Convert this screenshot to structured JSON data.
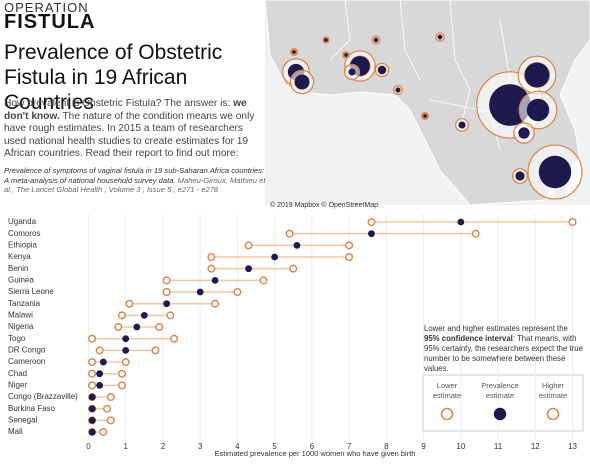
{
  "header": {
    "kicker": "OPERATION",
    "brand": "FISTULA",
    "title": "Prevalence of Obstetric Fistula in 19 African Countries",
    "intro": [
      "How prevalent is Obstetric Fistula? The answer is: ",
      "we don't know.",
      " The nature of the condition means we only have rough estimates. In 2015 a team of researchers used national health studies to create estimates for 19 African countries. Read their report to find out more:"
    ],
    "citation": [
      "Prevalence of symptoms of vaginal fistula in 19 sub-Saharan Africa countries: A meta-analysis of national household survey data.",
      " Maheu-Giroux, Mathieu et al., The Lancet Global Health , Volume 3 , Issue 5 , e271 - e278"
    ]
  },
  "map_credit": "© 2019 Mapbox © OpenStreetMap",
  "note": [
    "Lower and higher estimates represent the ",
    "95% confidence interval",
    ": That means, with 95% certainty, the researchers expect the true number to be somewhere between these values."
  ],
  "chart_data": {
    "type": "dumbbell",
    "categories": [
      "Uganda",
      "Comoros",
      "Ethiopia",
      "Kenya",
      "Benin",
      "Guinea",
      "Sierra Leone",
      "Tanzania",
      "Malawi",
      "Nigeria",
      "Togo",
      "DR Congo",
      "Cameroon",
      "Chad",
      "Niger",
      "Congo (Brazzaville)",
      "Burkina Faso",
      "Senegal",
      "Mali"
    ],
    "series": [
      {
        "name": "Lower estimate",
        "color": "#d9834a",
        "values": [
          7.6,
          5.4,
          4.3,
          3.3,
          3.3,
          2.1,
          2.1,
          1.1,
          0.9,
          0.8,
          0.1,
          0.3,
          0.1,
          0.1,
          0.1,
          0.1,
          0.1,
          0.1,
          0.1
        ]
      },
      {
        "name": "Prevalence estimate",
        "color": "#1d1a4d",
        "values": [
          10.0,
          7.6,
          5.6,
          5.0,
          4.3,
          3.4,
          3.0,
          2.1,
          1.5,
          1.3,
          1.0,
          1.0,
          0.4,
          0.3,
          0.3,
          0.1,
          0.1,
          0.1,
          0.1
        ]
      },
      {
        "name": "Higher estimate",
        "color": "#d9834a",
        "values": [
          13.0,
          10.4,
          7.0,
          7.0,
          5.5,
          4.7,
          4.0,
          3.4,
          2.2,
          1.9,
          2.3,
          1.8,
          1.0,
          0.9,
          0.9,
          0.6,
          0.5,
          0.6,
          0.4
        ]
      }
    ],
    "xlim": [
      -0.2,
      13.2
    ],
    "xticks": [
      0,
      1,
      2,
      3,
      4,
      5,
      6,
      7,
      8,
      9,
      10,
      11,
      12,
      13
    ],
    "xlabel": "Estimated prevalence per 1000 women who have given birth"
  }
}
